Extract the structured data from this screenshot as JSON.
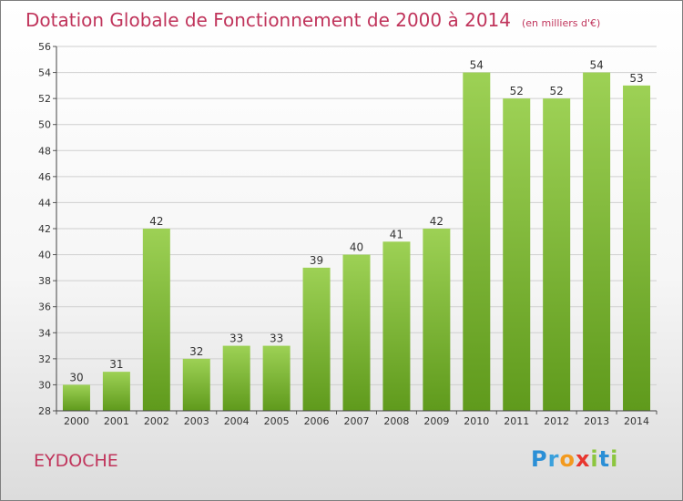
{
  "title": "Dotation Globale de Fonctionnement de 2000 à 2014",
  "unit": "(en milliers d'€)",
  "commune": "EYDOCHE",
  "logo": {
    "letters": [
      "P",
      "r",
      "o",
      "x",
      "i",
      "t",
      "i"
    ],
    "colors": [
      "#2b8fd6",
      "#3aa0dc",
      "#f39a1e",
      "#e8362f",
      "#8cc63f",
      "#2b8fd6",
      "#8cc63f"
    ]
  },
  "colors": {
    "bar_top": "#9dd155",
    "bar_bottom": "#5f9a1c",
    "title": "#c0345b"
  },
  "chart_data": {
    "type": "bar",
    "title": "Dotation Globale de Fonctionnement de 2000 à 2014",
    "subtitle": "(en milliers d'€)",
    "categories": [
      "2000",
      "2001",
      "2002",
      "2003",
      "2004",
      "2005",
      "2006",
      "2007",
      "2008",
      "2009",
      "2010",
      "2011",
      "2012",
      "2013",
      "2014"
    ],
    "values": [
      30,
      31,
      42,
      32,
      33,
      33,
      39,
      40,
      41,
      42,
      54,
      52,
      52,
      54,
      53
    ],
    "data_labels": [
      "30",
      "31",
      "42",
      "32",
      "33",
      "33",
      "39",
      "40",
      "41",
      "42",
      "54",
      "52",
      "52",
      "54",
      "53"
    ],
    "ylim": [
      28,
      56
    ],
    "yticks": [
      "28",
      "30",
      "32",
      "34",
      "36",
      "38",
      "40",
      "42",
      "44",
      "46",
      "48",
      "50",
      "52",
      "54",
      "56"
    ],
    "grid": true,
    "xlabel": "",
    "ylabel": ""
  }
}
